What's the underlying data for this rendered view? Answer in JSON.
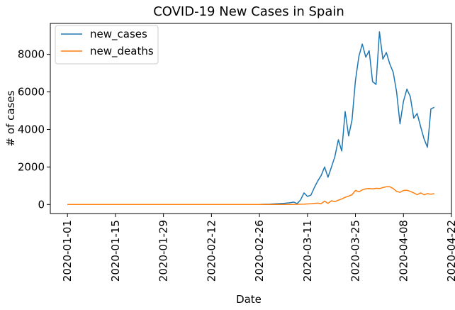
{
  "chart_data": {
    "type": "line",
    "title": "COVID-19 New Cases in Spain",
    "xlabel": "Date",
    "ylabel": "# of cases",
    "x_start": "2020-01-01",
    "x_end": "2020-04-17",
    "xlim": [
      "2019-12-27",
      "2020-04-22"
    ],
    "ylim": [
      -480,
      9650
    ],
    "x_ticks": [
      "2020-01-01",
      "2020-01-15",
      "2020-01-29",
      "2020-02-12",
      "2020-02-26",
      "2020-03-11",
      "2020-03-25",
      "2020-04-08",
      "2020-04-22"
    ],
    "y_ticks": [
      0,
      2000,
      4000,
      6000,
      8000
    ],
    "y_tick_labels": [
      "0",
      "2000",
      "4000",
      "6000",
      "8000"
    ],
    "legend_position": "top-left",
    "grid": false,
    "series": [
      {
        "name": "new_cases",
        "color": "#1f77b4",
        "points": [
          [
            "2020-01-01",
            0
          ],
          [
            "2020-02-25",
            0
          ],
          [
            "2020-02-26",
            5
          ],
          [
            "2020-02-27",
            10
          ],
          [
            "2020-02-28",
            15
          ],
          [
            "2020-02-29",
            20
          ],
          [
            "2020-03-01",
            30
          ],
          [
            "2020-03-02",
            40
          ],
          [
            "2020-03-03",
            50
          ],
          [
            "2020-03-04",
            60
          ],
          [
            "2020-03-05",
            80
          ],
          [
            "2020-03-06",
            100
          ],
          [
            "2020-03-07",
            130
          ],
          [
            "2020-03-08",
            50
          ],
          [
            "2020-03-09",
            250
          ],
          [
            "2020-03-10",
            620
          ],
          [
            "2020-03-11",
            430
          ],
          [
            "2020-03-12",
            500
          ],
          [
            "2020-03-13",
            900
          ],
          [
            "2020-03-14",
            1250
          ],
          [
            "2020-03-15",
            1550
          ],
          [
            "2020-03-16",
            2000
          ],
          [
            "2020-03-17",
            1450
          ],
          [
            "2020-03-18",
            2000
          ],
          [
            "2020-03-19",
            2550
          ],
          [
            "2020-03-20",
            3450
          ],
          [
            "2020-03-21",
            2850
          ],
          [
            "2020-03-22",
            4950
          ],
          [
            "2020-03-23",
            3650
          ],
          [
            "2020-03-24",
            4500
          ],
          [
            "2020-03-25",
            6600
          ],
          [
            "2020-03-26",
            7900
          ],
          [
            "2020-03-27",
            8550
          ],
          [
            "2020-03-28",
            7850
          ],
          [
            "2020-03-29",
            8200
          ],
          [
            "2020-03-30",
            6550
          ],
          [
            "2020-03-31",
            6400
          ],
          [
            "2020-04-01",
            9200
          ],
          [
            "2020-04-02",
            7750
          ],
          [
            "2020-04-03",
            8100
          ],
          [
            "2020-04-04",
            7500
          ],
          [
            "2020-04-05",
            7050
          ],
          [
            "2020-04-06",
            6000
          ],
          [
            "2020-04-07",
            4300
          ],
          [
            "2020-04-08",
            5500
          ],
          [
            "2020-04-09",
            6150
          ],
          [
            "2020-04-10",
            5750
          ],
          [
            "2020-04-11",
            4600
          ],
          [
            "2020-04-12",
            4850
          ],
          [
            "2020-04-13",
            4150
          ],
          [
            "2020-04-14",
            3500
          ],
          [
            "2020-04-15",
            3050
          ],
          [
            "2020-04-16",
            5100
          ],
          [
            "2020-04-17",
            5180
          ]
        ]
      },
      {
        "name": "new_deaths",
        "color": "#ff7f0e",
        "points": [
          [
            "2020-01-01",
            0
          ],
          [
            "2020-03-02",
            0
          ],
          [
            "2020-03-03",
            1
          ],
          [
            "2020-03-04",
            2
          ],
          [
            "2020-03-05",
            3
          ],
          [
            "2020-03-06",
            5
          ],
          [
            "2020-03-07",
            8
          ],
          [
            "2020-03-08",
            10
          ],
          [
            "2020-03-09",
            15
          ],
          [
            "2020-03-10",
            20
          ],
          [
            "2020-03-11",
            30
          ],
          [
            "2020-03-12",
            40
          ],
          [
            "2020-03-13",
            60
          ],
          [
            "2020-03-14",
            70
          ],
          [
            "2020-03-15",
            40
          ],
          [
            "2020-03-16",
            180
          ],
          [
            "2020-03-17",
            60
          ],
          [
            "2020-03-18",
            200
          ],
          [
            "2020-03-19",
            150
          ],
          [
            "2020-03-20",
            230
          ],
          [
            "2020-03-21",
            300
          ],
          [
            "2020-03-22",
            380
          ],
          [
            "2020-03-23",
            450
          ],
          [
            "2020-03-24",
            520
          ],
          [
            "2020-03-25",
            750
          ],
          [
            "2020-03-26",
            680
          ],
          [
            "2020-03-27",
            780
          ],
          [
            "2020-03-28",
            840
          ],
          [
            "2020-03-29",
            850
          ],
          [
            "2020-03-30",
            830
          ],
          [
            "2020-03-31",
            860
          ],
          [
            "2020-04-01",
            850
          ],
          [
            "2020-04-02",
            900
          ],
          [
            "2020-04-03",
            950
          ],
          [
            "2020-04-04",
            950
          ],
          [
            "2020-04-05",
            850
          ],
          [
            "2020-04-06",
            700
          ],
          [
            "2020-04-07",
            650
          ],
          [
            "2020-04-08",
            750
          ],
          [
            "2020-04-09",
            760
          ],
          [
            "2020-04-10",
            700
          ],
          [
            "2020-04-11",
            620
          ],
          [
            "2020-04-12",
            520
          ],
          [
            "2020-04-13",
            620
          ],
          [
            "2020-04-14",
            520
          ],
          [
            "2020-04-15",
            580
          ],
          [
            "2020-04-16",
            550
          ],
          [
            "2020-04-17",
            580
          ]
        ]
      }
    ]
  }
}
